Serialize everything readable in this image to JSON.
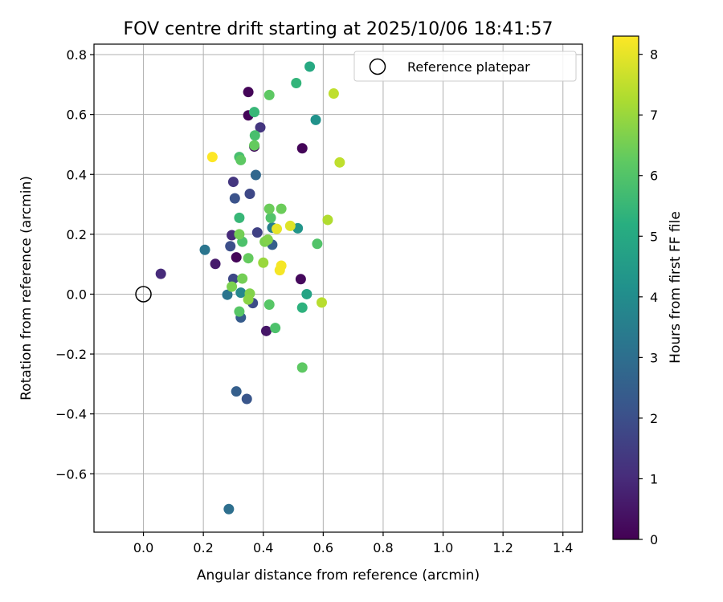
{
  "chart_data": {
    "type": "scatter",
    "title": "FOV centre drift starting at 2025/10/06 18:41:57",
    "xlabel": "Angular distance from reference (arcmin)",
    "ylabel": "Rotation from reference (arcmin)",
    "xlim": [
      -0.165,
      1.465
    ],
    "ylim": [
      -0.795,
      0.835
    ],
    "xticks": [
      0.0,
      0.2,
      0.4,
      0.6,
      0.8,
      1.0,
      1.2,
      1.4
    ],
    "xtick_labels": [
      "0.0",
      "0.2",
      "0.4",
      "0.6",
      "0.8",
      "1.0",
      "1.2",
      "1.4"
    ],
    "yticks": [
      -0.6,
      -0.4,
      -0.2,
      0.0,
      0.2,
      0.4,
      0.6,
      0.8
    ],
    "ytick_labels": [
      "−0.6",
      "−0.4",
      "−0.2",
      "0.0",
      "0.2",
      "0.4",
      "0.6",
      "0.8"
    ],
    "grid": true,
    "legend": {
      "label": "Reference platepar",
      "placement": "top-right"
    },
    "reference_point": {
      "x": 0.0,
      "y": 0.0
    },
    "colorbar": {
      "label": "Hours from first FF file",
      "range": [
        0,
        8.3
      ],
      "ticks": [
        0,
        1,
        2,
        3,
        4,
        5,
        6,
        7,
        8
      ],
      "tick_labels": [
        "0",
        "1",
        "2",
        "3",
        "4",
        "5",
        "6",
        "7",
        "8"
      ],
      "colormap": "viridis"
    },
    "points": [
      {
        "x": 0.35,
        "y": 0.675,
        "hours": 0.1
      },
      {
        "x": 0.35,
        "y": 0.597,
        "hours": 0.1
      },
      {
        "x": 0.53,
        "y": 0.487,
        "hours": 0.1
      },
      {
        "x": 0.31,
        "y": 0.123,
        "hours": 0.1
      },
      {
        "x": 0.525,
        "y": 0.05,
        "hours": 0.2
      },
      {
        "x": 0.41,
        "y": -0.123,
        "hours": 0.5
      },
      {
        "x": 0.37,
        "y": 0.493,
        "hours": 0.3
      },
      {
        "x": 0.24,
        "y": 0.101,
        "hours": 0.6
      },
      {
        "x": 0.058,
        "y": 0.068,
        "hours": 1.0
      },
      {
        "x": 0.295,
        "y": 0.197,
        "hours": 1.0
      },
      {
        "x": 0.39,
        "y": 0.557,
        "hours": 1.3
      },
      {
        "x": 0.3,
        "y": 0.375,
        "hours": 1.3
      },
      {
        "x": 0.38,
        "y": 0.206,
        "hours": 1.6
      },
      {
        "x": 0.355,
        "y": 0.335,
        "hours": 1.8
      },
      {
        "x": 0.3,
        "y": 0.051,
        "hours": 1.8
      },
      {
        "x": 0.365,
        "y": -0.03,
        "hours": 1.9
      },
      {
        "x": 0.29,
        "y": 0.16,
        "hours": 2.0
      },
      {
        "x": 0.305,
        "y": 0.32,
        "hours": 2.1
      },
      {
        "x": 0.345,
        "y": -0.35,
        "hours": 2.2
      },
      {
        "x": 0.31,
        "y": -0.325,
        "hours": 2.5
      },
      {
        "x": 0.325,
        "y": -0.078,
        "hours": 2.4
      },
      {
        "x": 0.43,
        "y": 0.165,
        "hours": 2.5
      },
      {
        "x": 0.375,
        "y": 0.398,
        "hours": 2.8
      },
      {
        "x": 0.285,
        "y": -0.718,
        "hours": 3.0
      },
      {
        "x": 0.205,
        "y": 0.148,
        "hours": 3.2
      },
      {
        "x": 0.28,
        "y": -0.002,
        "hours": 3.2
      },
      {
        "x": 0.43,
        "y": 0.222,
        "hours": 3.5
      },
      {
        "x": 0.325,
        "y": 0.005,
        "hours": 3.8
      },
      {
        "x": 0.575,
        "y": 0.582,
        "hours": 4.2
      },
      {
        "x": 0.515,
        "y": 0.22,
        "hours": 4.3
      },
      {
        "x": 0.545,
        "y": 0.0,
        "hours": 4.8
      },
      {
        "x": 0.555,
        "y": 0.76,
        "hours": 5.0
      },
      {
        "x": 0.53,
        "y": -0.045,
        "hours": 5.3
      },
      {
        "x": 0.51,
        "y": 0.705,
        "hours": 5.4
      },
      {
        "x": 0.37,
        "y": 0.608,
        "hours": 5.5
      },
      {
        "x": 0.32,
        "y": 0.255,
        "hours": 5.5
      },
      {
        "x": 0.372,
        "y": 0.53,
        "hours": 5.8
      },
      {
        "x": 0.32,
        "y": 0.458,
        "hours": 5.8
      },
      {
        "x": 0.44,
        "y": -0.113,
        "hours": 5.9
      },
      {
        "x": 0.33,
        "y": 0.175,
        "hours": 5.9
      },
      {
        "x": 0.425,
        "y": 0.255,
        "hours": 6.0
      },
      {
        "x": 0.58,
        "y": 0.168,
        "hours": 6.0
      },
      {
        "x": 0.32,
        "y": -0.058,
        "hours": 6.1
      },
      {
        "x": 0.42,
        "y": -0.035,
        "hours": 6.1
      },
      {
        "x": 0.53,
        "y": -0.245,
        "hours": 6.2
      },
      {
        "x": 0.42,
        "y": 0.665,
        "hours": 6.2
      },
      {
        "x": 0.325,
        "y": 0.448,
        "hours": 6.2
      },
      {
        "x": 0.37,
        "y": 0.497,
        "hours": 6.3
      },
      {
        "x": 0.35,
        "y": 0.12,
        "hours": 6.3
      },
      {
        "x": 0.46,
        "y": 0.285,
        "hours": 6.4
      },
      {
        "x": 0.42,
        "y": 0.285,
        "hours": 6.4
      },
      {
        "x": 0.32,
        "y": 0.2,
        "hours": 6.5
      },
      {
        "x": 0.33,
        "y": 0.052,
        "hours": 6.5
      },
      {
        "x": 0.295,
        "y": 0.025,
        "hours": 6.6
      },
      {
        "x": 0.405,
        "y": 0.175,
        "hours": 6.6
      },
      {
        "x": 0.355,
        "y": 0.002,
        "hours": 6.7
      },
      {
        "x": 0.415,
        "y": 0.182,
        "hours": 6.7
      },
      {
        "x": 0.35,
        "y": -0.018,
        "hours": 6.8
      },
      {
        "x": 0.4,
        "y": 0.105,
        "hours": 7.0
      },
      {
        "x": 0.615,
        "y": 0.248,
        "hours": 7.3
      },
      {
        "x": 0.595,
        "y": -0.028,
        "hours": 7.4
      },
      {
        "x": 0.635,
        "y": 0.67,
        "hours": 7.5
      },
      {
        "x": 0.655,
        "y": 0.44,
        "hours": 7.5
      },
      {
        "x": 0.49,
        "y": 0.228,
        "hours": 7.9
      },
      {
        "x": 0.445,
        "y": 0.218,
        "hours": 8.0
      },
      {
        "x": 0.455,
        "y": 0.08,
        "hours": 8.2
      },
      {
        "x": 0.46,
        "y": 0.095,
        "hours": 8.2
      },
      {
        "x": 0.23,
        "y": 0.458,
        "hours": 8.3
      }
    ]
  }
}
